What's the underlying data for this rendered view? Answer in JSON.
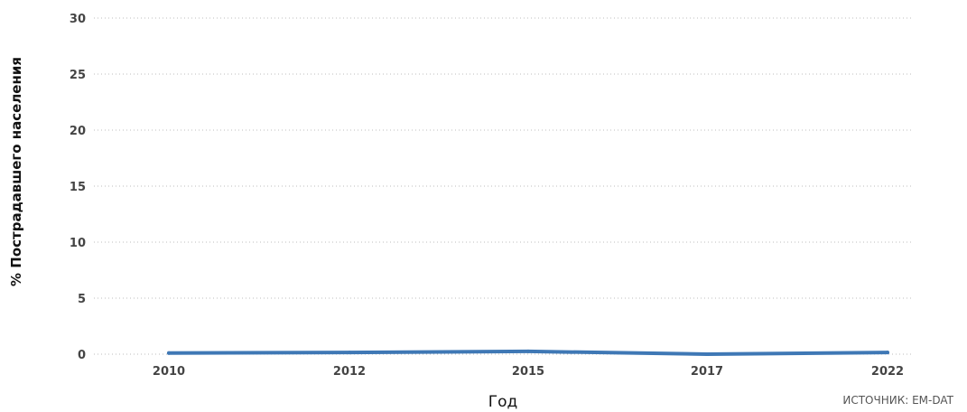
{
  "chart_data": {
    "type": "line",
    "categories": [
      "2010",
      "2012",
      "2015",
      "2017",
      "2022"
    ],
    "series": [
      {
        "values": [
          0.1,
          0.15,
          0.25,
          0.0,
          0.15
        ]
      }
    ],
    "xlabel": "Год",
    "ylabel": "% Пострадавшего населения",
    "ylim": [
      0,
      30
    ],
    "yticks": [
      0,
      5,
      10,
      15,
      20,
      25,
      30
    ],
    "grid": true,
    "line_color": "#3f78b5"
  },
  "source": "ИСТОЧНИК: EM-DAT"
}
